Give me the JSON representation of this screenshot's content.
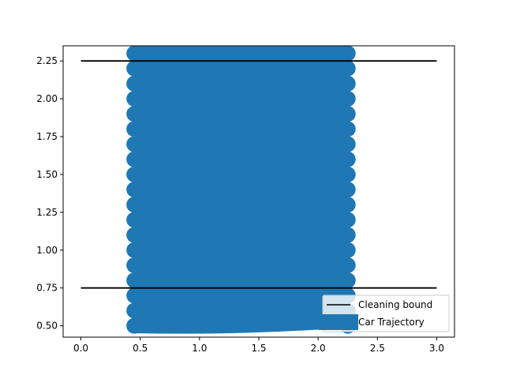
{
  "chart_data": {
    "type": "line",
    "xlim": [
      -0.15,
      3.15
    ],
    "ylim": [
      0.425,
      2.35
    ],
    "x_ticks": [
      {
        "value": 0.0,
        "label": "0.0"
      },
      {
        "value": 0.5,
        "label": "0.5"
      },
      {
        "value": 1.0,
        "label": "1.0"
      },
      {
        "value": 1.5,
        "label": "1.5"
      },
      {
        "value": 2.0,
        "label": "2.0"
      },
      {
        "value": 2.5,
        "label": "2.5"
      },
      {
        "value": 3.0,
        "label": "3.0"
      }
    ],
    "y_ticks": [
      {
        "value": 0.5,
        "label": "0.50"
      },
      {
        "value": 0.75,
        "label": "0.75"
      },
      {
        "value": 1.0,
        "label": "1.00"
      },
      {
        "value": 1.25,
        "label": "1.25"
      },
      {
        "value": 1.5,
        "label": "1.50"
      },
      {
        "value": 1.75,
        "label": "1.75"
      },
      {
        "value": 2.0,
        "label": "2.00"
      },
      {
        "value": 2.25,
        "label": "2.25"
      }
    ],
    "bounds": [
      {
        "x": [
          0.0,
          3.0
        ],
        "y": [
          2.25,
          2.25
        ]
      },
      {
        "x": [
          0.0,
          3.0
        ],
        "y": [
          0.75,
          0.75
        ]
      }
    ],
    "trajectory": {
      "x_left": 0.45,
      "x_right": 2.25,
      "y_start": 0.5,
      "y_end": 2.3,
      "row_step": 0.1
    },
    "legend": {
      "position": "lower-right",
      "entries": [
        {
          "label": "Cleaning bound",
          "color": "#000000"
        },
        {
          "label": "Car Trajectory",
          "color": "#1f77b4"
        }
      ]
    },
    "colors": {
      "bound": "#000000",
      "trajectory": "#1f77b4"
    }
  }
}
